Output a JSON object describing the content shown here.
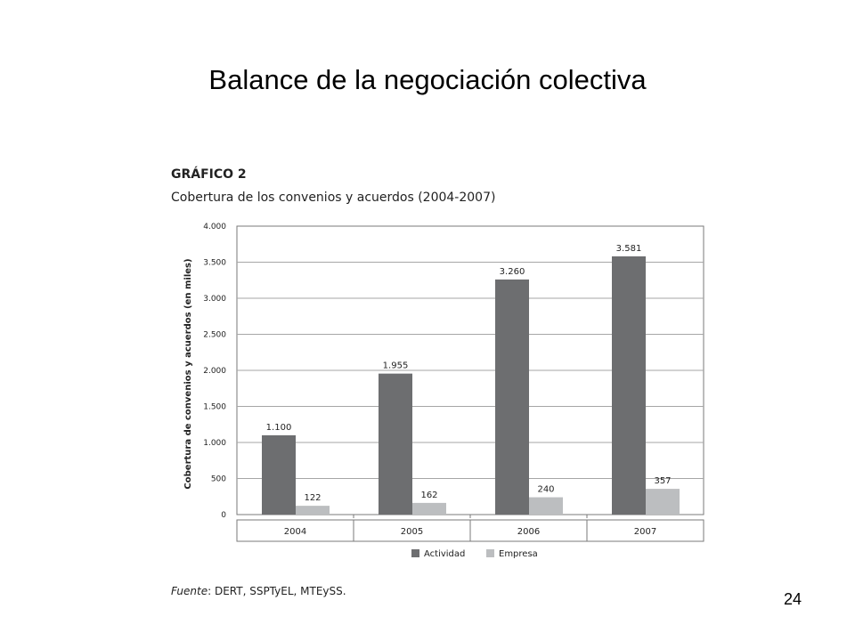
{
  "slide": {
    "title": "Balance de la negociación colectiva",
    "page_number": "24"
  },
  "figure": {
    "label": "GRÁFICO 2",
    "caption": "Cobertura de los convenios y acuerdos (2004-2007)",
    "source_prefix": "Fuente",
    "source_text": ": DERT, SSPTyEL, MTEySS."
  },
  "chart_data": {
    "type": "bar",
    "categories": [
      "2004",
      "2005",
      "2006",
      "2007"
    ],
    "series": [
      {
        "name": "Actividad",
        "values": [
          1100,
          1955,
          3260,
          3581
        ],
        "labels": [
          "1.100",
          "1.955",
          "3.260",
          "3.581"
        ],
        "color": "#6d6e70"
      },
      {
        "name": "Empresa",
        "values": [
          122,
          162,
          240,
          357
        ],
        "labels": [
          "122",
          "162",
          "240",
          "357"
        ],
        "color": "#bcbec0"
      }
    ],
    "ylabel": "Cobertura de convenios y acuerdos (en miles)",
    "ylim": [
      0,
      4000
    ],
    "yticks": [
      0,
      500,
      1000,
      1500,
      2000,
      2500,
      3000,
      3500,
      4000
    ],
    "ytick_labels": [
      "0",
      "500",
      "1.000",
      "1.500",
      "2.000",
      "2.500",
      "3.000",
      "3.500",
      "4.000"
    ],
    "grid": true,
    "legend_position": "bottom-center"
  }
}
